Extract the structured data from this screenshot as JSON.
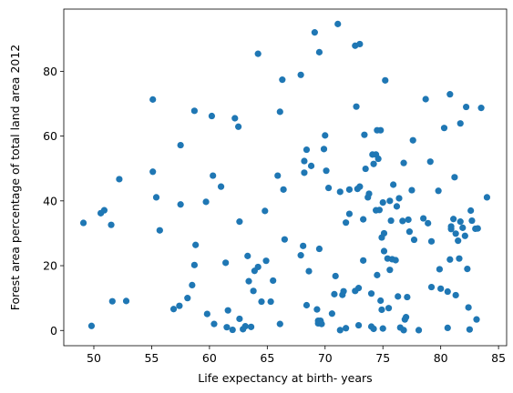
{
  "chart_data": {
    "type": "scatter",
    "title": "",
    "xlabel": "Life expectancy at birth- years",
    "ylabel": "Forest area percentage of total land area 2012",
    "xlim": [
      47.4,
      85.7
    ],
    "ylim": [
      -4.7,
      99.2
    ],
    "x_ticks": [
      50,
      55,
      60,
      65,
      70,
      75,
      80,
      85
    ],
    "y_ticks": [
      0,
      20,
      40,
      60,
      80
    ],
    "grid": false,
    "legend": "none",
    "marker_color": "#1f77b4",
    "points": [
      [
        49.1,
        33.2
      ],
      [
        49.8,
        1.4
      ],
      [
        50.6,
        36.2
      ],
      [
        50.9,
        37.1
      ],
      [
        51.5,
        32.6
      ],
      [
        51.6,
        9.0
      ],
      [
        52.2,
        46.7
      ],
      [
        52.8,
        9.1
      ],
      [
        55.1,
        71.3
      ],
      [
        55.1,
        49.0
      ],
      [
        55.4,
        41.1
      ],
      [
        55.7,
        30.9
      ],
      [
        56.9,
        6.6
      ],
      [
        57.4,
        7.6
      ],
      [
        57.5,
        38.9
      ],
      [
        57.5,
        57.2
      ],
      [
        58.1,
        10.0
      ],
      [
        58.5,
        14.0
      ],
      [
        58.7,
        67.8
      ],
      [
        58.7,
        20.2
      ],
      [
        58.8,
        26.4
      ],
      [
        59.7,
        39.7
      ],
      [
        59.8,
        5.1
      ],
      [
        60.2,
        66.2
      ],
      [
        60.3,
        47.8
      ],
      [
        60.4,
        2.0
      ],
      [
        61.0,
        44.4
      ],
      [
        61.4,
        20.9
      ],
      [
        61.5,
        1.0
      ],
      [
        61.6,
        6.2
      ],
      [
        62.0,
        0.2
      ],
      [
        62.2,
        65.5
      ],
      [
        62.5,
        62.9
      ],
      [
        62.6,
        3.6
      ],
      [
        62.6,
        33.6
      ],
      [
        62.9,
        0.4
      ],
      [
        63.1,
        1.3
      ],
      [
        63.3,
        23.0
      ],
      [
        63.4,
        15.2
      ],
      [
        63.6,
        1.1
      ],
      [
        63.8,
        12.2
      ],
      [
        63.9,
        18.4
      ],
      [
        64.2,
        19.6
      ],
      [
        64.2,
        85.4
      ],
      [
        64.5,
        8.9
      ],
      [
        64.8,
        36.9
      ],
      [
        64.9,
        21.5
      ],
      [
        65.3,
        8.9
      ],
      [
        65.5,
        15.4
      ],
      [
        65.9,
        47.8
      ],
      [
        66.1,
        2.0
      ],
      [
        66.1,
        67.5
      ],
      [
        66.3,
        77.4
      ],
      [
        66.4,
        43.5
      ],
      [
        66.5,
        28.1
      ],
      [
        67.9,
        78.9
      ],
      [
        67.9,
        23.2
      ],
      [
        68.1,
        26.1
      ],
      [
        68.2,
        52.3
      ],
      [
        68.2,
        48.7
      ],
      [
        68.4,
        55.8
      ],
      [
        68.4,
        7.8
      ],
      [
        68.6,
        18.3
      ],
      [
        68.8,
        50.8
      ],
      [
        69.1,
        92.0
      ],
      [
        69.3,
        6.5
      ],
      [
        69.4,
        2.2
      ],
      [
        69.4,
        3.0
      ],
      [
        69.5,
        25.2
      ],
      [
        69.5,
        85.9
      ],
      [
        69.6,
        2.8
      ],
      [
        69.6,
        3.0
      ],
      [
        69.7,
        2.0
      ],
      [
        69.9,
        56.0
      ],
      [
        70.0,
        60.2
      ],
      [
        70.1,
        49.3
      ],
      [
        70.3,
        44.0
      ],
      [
        70.6,
        5.2
      ],
      [
        70.8,
        11.2
      ],
      [
        70.9,
        16.8
      ],
      [
        71.1,
        94.6
      ],
      [
        71.3,
        0.1
      ],
      [
        71.3,
        42.8
      ],
      [
        71.5,
        11.0
      ],
      [
        71.6,
        12.1
      ],
      [
        71.8,
        33.3
      ],
      [
        71.8,
        0.7
      ],
      [
        72.1,
        36.0
      ],
      [
        72.1,
        43.5
      ],
      [
        72.6,
        12.2
      ],
      [
        72.6,
        87.9
      ],
      [
        72.7,
        69.1
      ],
      [
        72.8,
        43.7
      ],
      [
        72.9,
        13.1
      ],
      [
        72.9,
        1.6
      ],
      [
        73.0,
        44.4
      ],
      [
        73.0,
        88.4
      ],
      [
        73.3,
        21.6
      ],
      [
        73.3,
        34.3
      ],
      [
        73.4,
        60.4
      ],
      [
        73.5,
        49.9
      ],
      [
        73.7,
        41.1
      ],
      [
        73.8,
        42.2
      ],
      [
        74.0,
        11.4
      ],
      [
        74.0,
        1.2
      ],
      [
        74.1,
        54.3
      ],
      [
        74.2,
        51.4
      ],
      [
        74.2,
        0.5
      ],
      [
        74.4,
        54.3
      ],
      [
        74.4,
        37.1
      ],
      [
        74.5,
        17.1
      ],
      [
        74.5,
        61.8
      ],
      [
        74.6,
        53.0
      ],
      [
        74.7,
        37.2
      ],
      [
        74.8,
        61.8
      ],
      [
        74.8,
        9.2
      ],
      [
        74.9,
        28.7
      ],
      [
        74.9,
        6.4
      ],
      [
        75.0,
        39.5
      ],
      [
        75.0,
        0.6
      ],
      [
        75.1,
        30.0
      ],
      [
        75.1,
        24.5
      ],
      [
        75.2,
        77.2
      ],
      [
        75.4,
        22.2
      ],
      [
        75.5,
        6.9
      ],
      [
        75.6,
        40.0
      ],
      [
        75.6,
        18.7
      ],
      [
        75.7,
        33.9
      ],
      [
        75.8,
        22.0
      ],
      [
        75.9,
        45.0
      ],
      [
        76.1,
        21.7
      ],
      [
        76.2,
        38.3
      ],
      [
        76.3,
        10.5
      ],
      [
        76.4,
        40.8
      ],
      [
        76.5,
        0.9
      ],
      [
        76.7,
        33.8
      ],
      [
        76.8,
        51.7
      ],
      [
        76.8,
        0.1
      ],
      [
        76.9,
        3.4
      ],
      [
        77.0,
        4.1
      ],
      [
        77.1,
        10.3
      ],
      [
        77.2,
        34.2
      ],
      [
        77.3,
        30.5
      ],
      [
        77.5,
        43.3
      ],
      [
        77.6,
        58.7
      ],
      [
        77.7,
        28.0
      ],
      [
        78.1,
        0.1
      ],
      [
        78.5,
        34.6
      ],
      [
        78.7,
        71.4
      ],
      [
        78.9,
        33.1
      ],
      [
        79.1,
        52.1
      ],
      [
        79.2,
        27.5
      ],
      [
        79.2,
        13.4
      ],
      [
        79.8,
        43.1
      ],
      [
        79.9,
        18.9
      ],
      [
        80.0,
        12.9
      ],
      [
        80.3,
        62.5
      ],
      [
        80.6,
        0.8
      ],
      [
        80.6,
        12.0
      ],
      [
        80.8,
        72.9
      ],
      [
        80.8,
        21.9
      ],
      [
        80.9,
        31.3
      ],
      [
        80.9,
        32.1
      ],
      [
        81.1,
        34.4
      ],
      [
        81.2,
        47.3
      ],
      [
        81.3,
        29.9
      ],
      [
        81.3,
        10.9
      ],
      [
        81.5,
        27.7
      ],
      [
        81.6,
        22.2
      ],
      [
        81.7,
        33.6
      ],
      [
        81.7,
        63.9
      ],
      [
        81.9,
        31.7
      ],
      [
        82.1,
        29.2
      ],
      [
        82.2,
        69.0
      ],
      [
        82.3,
        19.0
      ],
      [
        82.4,
        7.1
      ],
      [
        82.5,
        0.3
      ],
      [
        82.6,
        37.0
      ],
      [
        82.7,
        33.9
      ],
      [
        83.0,
        31.4
      ],
      [
        83.1,
        3.4
      ],
      [
        83.2,
        31.5
      ],
      [
        83.5,
        68.7
      ],
      [
        84.0,
        41.1
      ]
    ]
  }
}
